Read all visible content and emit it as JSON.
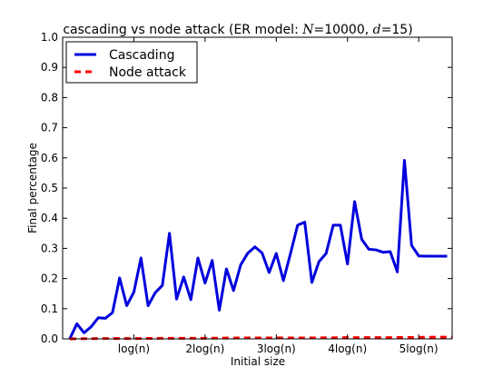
{
  "chart_data": {
    "type": "line",
    "title": "cascading vs node attack (ER model: N=10000, d=15)",
    "title_parts": {
      "prefix": "cascading vs node attack (ER model: ",
      "n_sym": "N",
      "n_val": "=10000",
      "sep": ", ",
      "d_sym": "d",
      "d_val": "=15",
      "suffix": ")"
    },
    "xlabel": "Initial size",
    "ylabel": "Final percentage",
    "xlim": [
      0,
      5.47
    ],
    "ylim": [
      0,
      1.0
    ],
    "x_ticks": [
      {
        "value": 1,
        "label": "log(n)"
      },
      {
        "value": 2,
        "label": "2log(n)"
      },
      {
        "value": 3,
        "label": "3log(n)"
      },
      {
        "value": 4,
        "label": "4log(n)"
      },
      {
        "value": 5,
        "label": "5log(n)"
      }
    ],
    "y_ticks": [
      {
        "value": 0.0,
        "label": "0.0"
      },
      {
        "value": 0.1,
        "label": "0.1"
      },
      {
        "value": 0.2,
        "label": "0.2"
      },
      {
        "value": 0.3,
        "label": "0.3"
      },
      {
        "value": 0.4,
        "label": "0.4"
      },
      {
        "value": 0.5,
        "label": "0.5"
      },
      {
        "value": 0.6,
        "label": "0.6"
      },
      {
        "value": 0.7,
        "label": "0.7"
      },
      {
        "value": 0.8,
        "label": "0.8"
      },
      {
        "value": 0.9,
        "label": "0.9"
      },
      {
        "value": 1.0,
        "label": "1.0"
      }
    ],
    "grid": false,
    "legend_position": "top-left",
    "series": [
      {
        "name": "Cascading",
        "color": "#0000dd",
        "style": "solid",
        "x": [
          0.1,
          0.2,
          0.3,
          0.4,
          0.5,
          0.6,
          0.7,
          0.8,
          0.9,
          1.0,
          1.1,
          1.2,
          1.3,
          1.4,
          1.5,
          1.6,
          1.7,
          1.8,
          1.9,
          2.0,
          2.1,
          2.2,
          2.3,
          2.4,
          2.5,
          2.6,
          2.7,
          2.8,
          2.9,
          3.0,
          3.1,
          3.2,
          3.3,
          3.4,
          3.5,
          3.6,
          3.7,
          3.8,
          3.9,
          4.0,
          4.1,
          4.2,
          4.3,
          4.4,
          4.5,
          4.6,
          4.7,
          4.8,
          4.9,
          5.0,
          5.1,
          5.2,
          5.3,
          5.4
        ],
        "values": [
          0.0,
          0.05,
          0.02,
          0.04,
          0.07,
          0.068,
          0.087,
          0.202,
          0.11,
          0.155,
          0.268,
          0.11,
          0.153,
          0.177,
          0.35,
          0.132,
          0.205,
          0.13,
          0.268,
          0.185,
          0.26,
          0.095,
          0.232,
          0.16,
          0.245,
          0.284,
          0.305,
          0.285,
          0.22,
          0.283,
          0.193,
          0.283,
          0.377,
          0.387,
          0.187,
          0.256,
          0.283,
          0.377,
          0.377,
          0.248,
          0.455,
          0.33,
          0.297,
          0.295,
          0.287,
          0.289,
          0.222,
          0.592,
          0.31,
          0.275,
          0.274,
          0.274,
          0.274,
          0.274
        ]
      },
      {
        "name": "Node attack",
        "color": "#ff0000",
        "style": "dashed",
        "x": [
          0.1,
          0.5,
          1.0,
          1.5,
          2.0,
          2.5,
          3.0,
          3.5,
          4.0,
          4.5,
          5.0,
          5.47
        ],
        "values": [
          0.0,
          0.001,
          0.001,
          0.002,
          0.002,
          0.003,
          0.003,
          0.003,
          0.004,
          0.004,
          0.005,
          0.006
        ]
      }
    ]
  }
}
